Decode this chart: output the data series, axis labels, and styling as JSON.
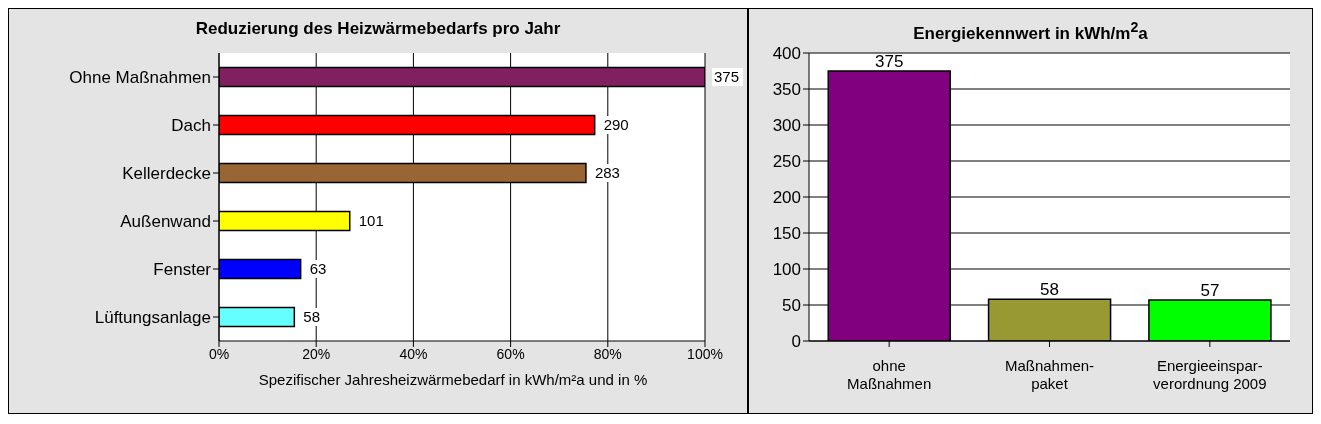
{
  "chart_data": [
    {
      "type": "bar",
      "orientation": "horizontal",
      "title": "Reduzierung des Heizwärmebedarfs pro Jahr",
      "xlabel": "Spezifischer Jahresheizwärmebedarf in kWh/m²a und in %",
      "categories": [
        "Ohne Maßnahmen",
        "Dach",
        "Kellerdecke",
        "Außenwand",
        "Fenster",
        "Lüftungsanlage"
      ],
      "values": [
        100,
        77.3,
        75.5,
        26.9,
        16.8,
        15.5
      ],
      "annotations": [
        {
          "text": "375",
          "x": 100,
          "y": "Ohne Maßnahmen"
        },
        {
          "text": "290",
          "x": 77.3,
          "y": "Dach"
        },
        {
          "text": "283",
          "x": 75.5,
          "y": "Kellerdecke"
        },
        {
          "text": "101",
          "x": 26.9,
          "y": "Außenwand"
        },
        {
          "text": "63",
          "x": 16.8,
          "y": "Fenster"
        },
        {
          "text": "58",
          "x": 15.5,
          "y": "Lüftungsanlage"
        }
      ],
      "colors": [
        "#802060",
        "#ff0000",
        "#996633",
        "#ffff00",
        "#0000ff",
        "#66ffff"
      ],
      "xlim": [
        0,
        100
      ],
      "xticks": [
        {
          "value": 0,
          "label": "0%"
        },
        {
          "value": 20,
          "label": "20%"
        },
        {
          "value": 40,
          "label": "40%"
        },
        {
          "value": 60,
          "label": "60%"
        },
        {
          "value": 80,
          "label": "80%"
        },
        {
          "value": 100,
          "label": "100%"
        }
      ],
      "grid": "x"
    },
    {
      "type": "bar",
      "title": "Energiekennwert in kWh/m$^{2}$a",
      "categories": [
        "ohne\nMaßnahmen",
        "Maßnahmen-\npaket",
        "Energieeinspar-\nverordnung 2009"
      ],
      "values": [
        375,
        58,
        57
      ],
      "colors": [
        "#800080",
        "#999933",
        "#00ff00"
      ],
      "data_labels": true,
      "ylim": [
        0,
        400
      ],
      "yticks": [
        0,
        50,
        100,
        150,
        200,
        250,
        300,
        350,
        400
      ],
      "grid": "y"
    }
  ]
}
